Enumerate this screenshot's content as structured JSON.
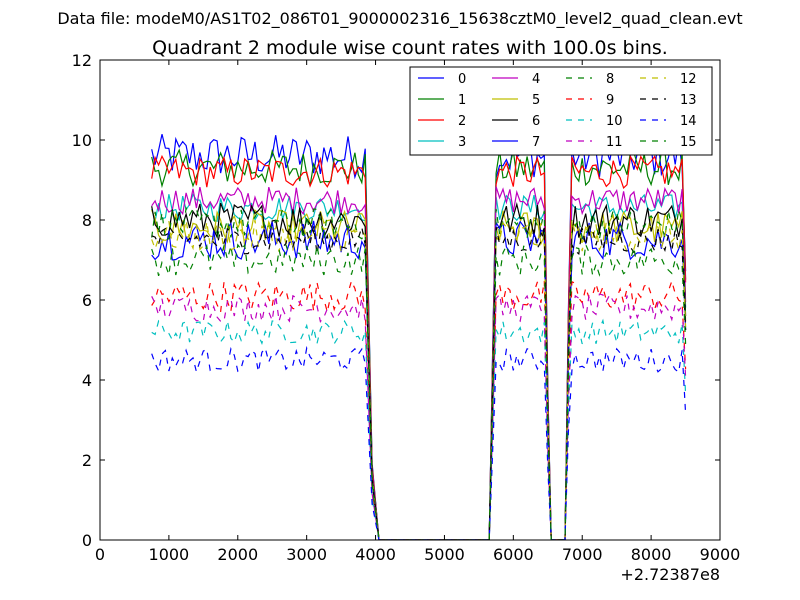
{
  "chart_data": {
    "type": "line",
    "suptitle": "Data file: modeM0/AS1T02_086T01_9000002316_15638cztM0_level2_quad_clean.evt",
    "title": "Quadrant 2 module wise count rates with 100.0s bins.",
    "xlabel": "",
    "ylabel": "",
    "x_offset_label": "+2.72387e8",
    "xlim": [
      0,
      9000
    ],
    "ylim": [
      0,
      12
    ],
    "xticks": [
      0,
      1000,
      2000,
      3000,
      4000,
      5000,
      6000,
      7000,
      8000,
      9000
    ],
    "yticks": [
      0,
      2,
      4,
      6,
      8,
      10,
      12
    ],
    "grid": false,
    "legend_position": "top-right",
    "legend_columns": 4,
    "series": [
      {
        "name": "0",
        "color": "#0000ff",
        "dashed": false,
        "level": 9.6,
        "amp": 0.55
      },
      {
        "name": "1",
        "color": "#008000",
        "dashed": false,
        "level": 9.3,
        "amp": 0.45
      },
      {
        "name": "2",
        "color": "#ff0000",
        "dashed": false,
        "level": 9.2,
        "amp": 0.4
      },
      {
        "name": "3",
        "color": "#00bfbf",
        "dashed": false,
        "level": 8.3,
        "amp": 0.35
      },
      {
        "name": "4",
        "color": "#bf00bf",
        "dashed": false,
        "level": 8.5,
        "amp": 0.35
      },
      {
        "name": "5",
        "color": "#bfbf00",
        "dashed": false,
        "level": 7.8,
        "amp": 0.45
      },
      {
        "name": "6",
        "color": "#000000",
        "dashed": false,
        "level": 8.0,
        "amp": 0.45
      },
      {
        "name": "7",
        "color": "#0000ff",
        "dashed": false,
        "level": 7.5,
        "amp": 0.5
      },
      {
        "name": "8",
        "color": "#008000",
        "dashed": true,
        "level": 7.9,
        "amp": 0.4
      },
      {
        "name": "9",
        "color": "#ff0000",
        "dashed": true,
        "level": 6.1,
        "amp": 0.4
      },
      {
        "name": "10",
        "color": "#00bfbf",
        "dashed": true,
        "level": 5.2,
        "amp": 0.3
      },
      {
        "name": "11",
        "color": "#bf00bf",
        "dashed": true,
        "level": 5.8,
        "amp": 0.35
      },
      {
        "name": "12",
        "color": "#bfbf00",
        "dashed": true,
        "level": 7.6,
        "amp": 0.4
      },
      {
        "name": "13",
        "color": "#000000",
        "dashed": true,
        "level": 7.5,
        "amp": 0.35
      },
      {
        "name": "14",
        "color": "#0000ff",
        "dashed": true,
        "level": 4.5,
        "amp": 0.3
      },
      {
        "name": "15",
        "color": "#008000",
        "dashed": true,
        "level": 7.0,
        "amp": 0.4
      }
    ],
    "time_profile": {
      "segments": [
        {
          "from": 750,
          "to": 3850,
          "step": 50,
          "active": true
        },
        {
          "from": 4050,
          "to": 5650,
          "step": 100,
          "active": false
        },
        {
          "from": 5750,
          "to": 6450,
          "step": 50,
          "active": true
        },
        {
          "from": 6550,
          "to": 6750,
          "step": 100,
          "active": false
        },
        {
          "from": 6850,
          "to": 8450,
          "step": 50,
          "active": true
        }
      ],
      "transitions": [
        {
          "x": 3950,
          "fraction": 0.2
        },
        {
          "x": 5700,
          "fraction": 0.5
        },
        {
          "x": 6500,
          "fraction": 0.4
        },
        {
          "x": 6800,
          "fraction": 0.6
        },
        {
          "x": 8500,
          "fraction": 0.7
        }
      ]
    }
  }
}
